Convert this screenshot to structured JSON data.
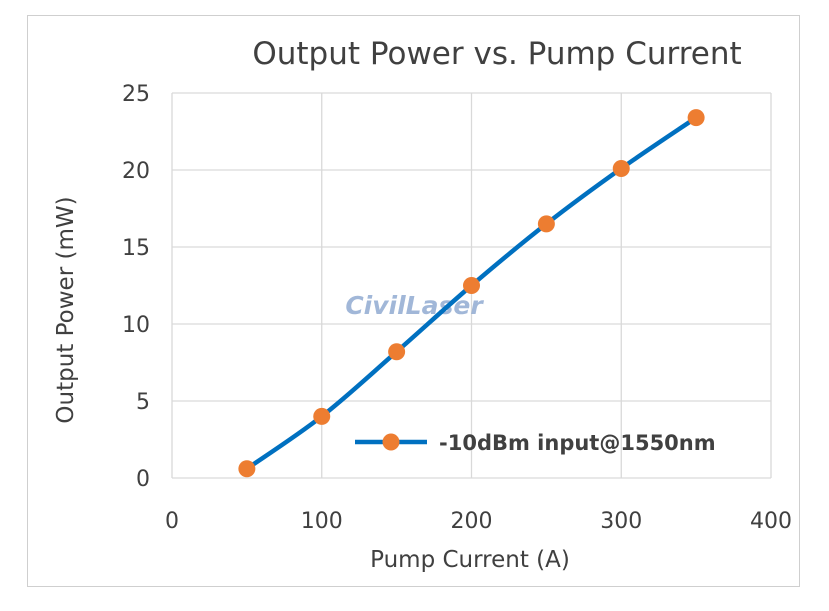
{
  "chart_data": {
    "type": "line",
    "title": "Output Power vs. Pump Current",
    "xlabel": "Pump Current (A)",
    "ylabel": "Output Power (mW)",
    "xlim": [
      0,
      400
    ],
    "ylim": [
      0,
      25
    ],
    "xticks": [
      0,
      100,
      200,
      300,
      400
    ],
    "yticks": [
      0,
      5,
      10,
      15,
      20,
      25
    ],
    "grid": true,
    "legend_position": "lower-right",
    "series": [
      {
        "name": "-10dBm input@1550nm",
        "line_color": "#0070c0",
        "marker_color": "#ed7d31",
        "x": [
          50,
          100,
          150,
          200,
          250,
          300,
          350
        ],
        "y": [
          0.6,
          4.0,
          8.2,
          12.5,
          16.5,
          20.1,
          23.4
        ]
      }
    ]
  },
  "watermark": "CivilLaser"
}
